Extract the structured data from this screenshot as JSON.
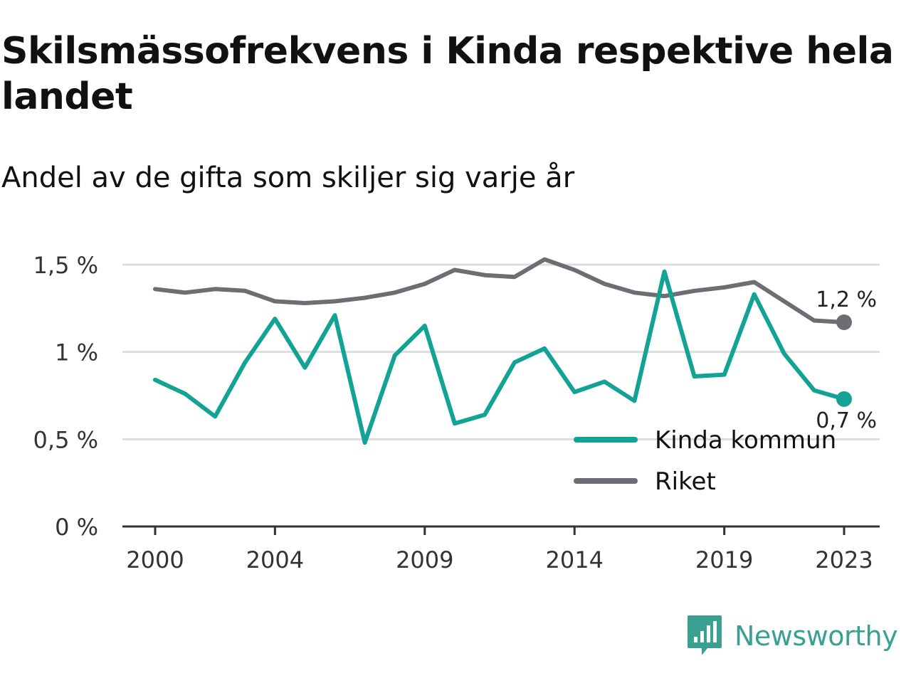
{
  "header": {
    "title": "Skilsmässofrekvens i Kinda respektive hela landet",
    "subtitle": "Andel av de gifta som skiljer sig varje år"
  },
  "brand": {
    "name": "Newsworthy",
    "icon": "bar-chart-speech-bubble-icon",
    "color": "#3aa091"
  },
  "chart_data": {
    "type": "line",
    "title": "Skilsmässofrekvens i Kinda respektive hela landet",
    "subtitle": "Andel av de gifta som skiljer sig varje år",
    "xlabel": "",
    "ylabel": "",
    "x": [
      2000,
      2001,
      2002,
      2003,
      2004,
      2005,
      2006,
      2007,
      2008,
      2009,
      2010,
      2011,
      2012,
      2013,
      2014,
      2015,
      2016,
      2017,
      2018,
      2019,
      2020,
      2021,
      2022,
      2023
    ],
    "x_ticks": [
      2000,
      2004,
      2009,
      2014,
      2019,
      2023
    ],
    "x_tick_labels": [
      "2000",
      "2004",
      "2009",
      "2014",
      "2019",
      "2023"
    ],
    "ylim": [
      0,
      1.5
    ],
    "y_ticks": [
      0,
      0.5,
      1,
      1.5
    ],
    "y_tick_labels": [
      "0 %",
      "0,5 %",
      "1 %",
      "1,5 %"
    ],
    "grid": true,
    "legend_position": "bottom-right",
    "series": [
      {
        "name": "Kinda kommun",
        "color": "#13a394",
        "end_label": "0,7 %",
        "values": [
          0.84,
          0.76,
          0.63,
          0.94,
          1.19,
          0.91,
          1.21,
          0.48,
          0.98,
          1.15,
          0.59,
          0.64,
          0.94,
          1.02,
          0.77,
          0.83,
          0.72,
          1.46,
          0.86,
          0.87,
          1.33,
          0.99,
          0.78,
          0.73
        ]
      },
      {
        "name": "Riket",
        "color": "#6e6d74",
        "end_label": "1,2 %",
        "values": [
          1.36,
          1.34,
          1.36,
          1.35,
          1.29,
          1.28,
          1.29,
          1.31,
          1.34,
          1.39,
          1.47,
          1.44,
          1.43,
          1.53,
          1.47,
          1.39,
          1.34,
          1.32,
          1.35,
          1.37,
          1.4,
          1.29,
          1.18,
          1.17
        ]
      }
    ]
  }
}
